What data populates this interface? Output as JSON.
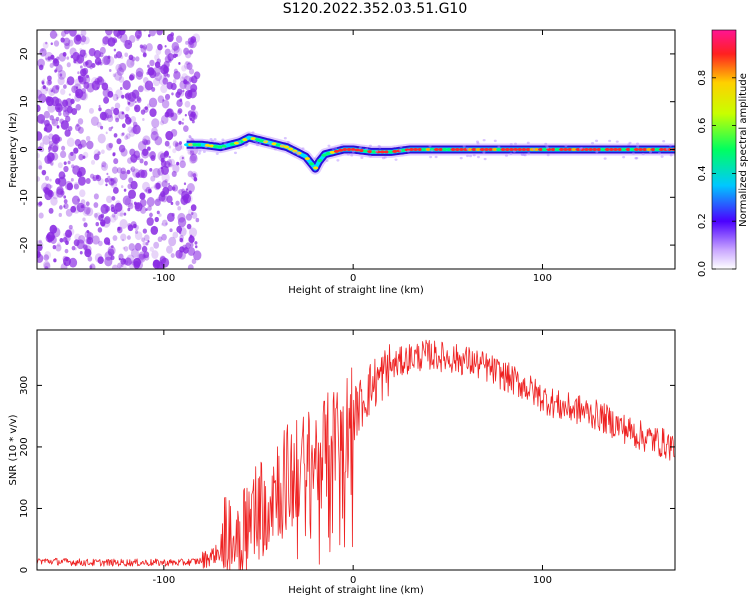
{
  "title": "S120.2022.352.03.51.G10",
  "colors": {
    "spectrogram_points": "#8a2be2",
    "ridge_outer": "#2a0fd8",
    "ridge_mid": "#00e0ff",
    "ridge_core": "#ff2a2a",
    "snr_line": "#ee2222"
  },
  "chart_data": [
    {
      "type": "heatmap",
      "title": "S120.2022.352.03.51.G10",
      "xlabel": "Height of straight line (km)",
      "ylabel": "Frequency (Hz)",
      "xlim": [
        -167,
        170
      ],
      "ylim": [
        -25,
        25
      ],
      "xticks": [
        -100,
        0,
        100
      ],
      "yticks": [
        -20,
        -10,
        0,
        10,
        20
      ],
      "colorbar": {
        "label": "Normalized spectral amplitude",
        "range": [
          0,
          1
        ],
        "ticks": [
          "0.0",
          "0.2",
          "0.4",
          "0.6",
          "0.8"
        ]
      },
      "noise_region_x": [
        -167,
        -88
      ],
      "ridge": {
        "x": [
          -88,
          -80,
          -70,
          -60,
          -55,
          -50,
          -45,
          -40,
          -35,
          -30,
          -25,
          -22,
          -20,
          -18,
          -15,
          -10,
          -5,
          0,
          10,
          20,
          30,
          40,
          60,
          80,
          100,
          120,
          140,
          170
        ],
        "y": [
          1,
          1,
          0.5,
          1.5,
          2.5,
          2,
          1.5,
          1,
          0.5,
          -0.5,
          -1.5,
          -3,
          -4,
          -2.5,
          -1,
          -0.5,
          0,
          0,
          -0.5,
          -0.5,
          0,
          0,
          0,
          0,
          0,
          0,
          0,
          0
        ]
      }
    },
    {
      "type": "line",
      "xlabel": "Height of straight line (km)",
      "ylabel": "SNR (10 * v/v)",
      "xlim": [
        -167,
        170
      ],
      "ylim": [
        0,
        390
      ],
      "xticks": [
        -100,
        0,
        100
      ],
      "yticks": [
        0,
        100,
        200,
        300
      ],
      "series": [
        {
          "x": [
            -167,
            -140,
            -110,
            -90,
            -80,
            -70,
            -60,
            -50,
            -40,
            -30,
            -20,
            -10,
            0,
            10,
            20,
            30,
            40,
            50,
            60,
            70,
            80,
            90,
            100,
            110,
            120,
            130,
            140,
            150,
            160,
            170
          ],
          "values": [
            15,
            12,
            12,
            12,
            15,
            30,
            60,
            100,
            140,
            160,
            180,
            210,
            250,
            300,
            330,
            345,
            350,
            345,
            340,
            330,
            315,
            300,
            280,
            265,
            260,
            250,
            235,
            220,
            210,
            200
          ]
        }
      ]
    }
  ]
}
